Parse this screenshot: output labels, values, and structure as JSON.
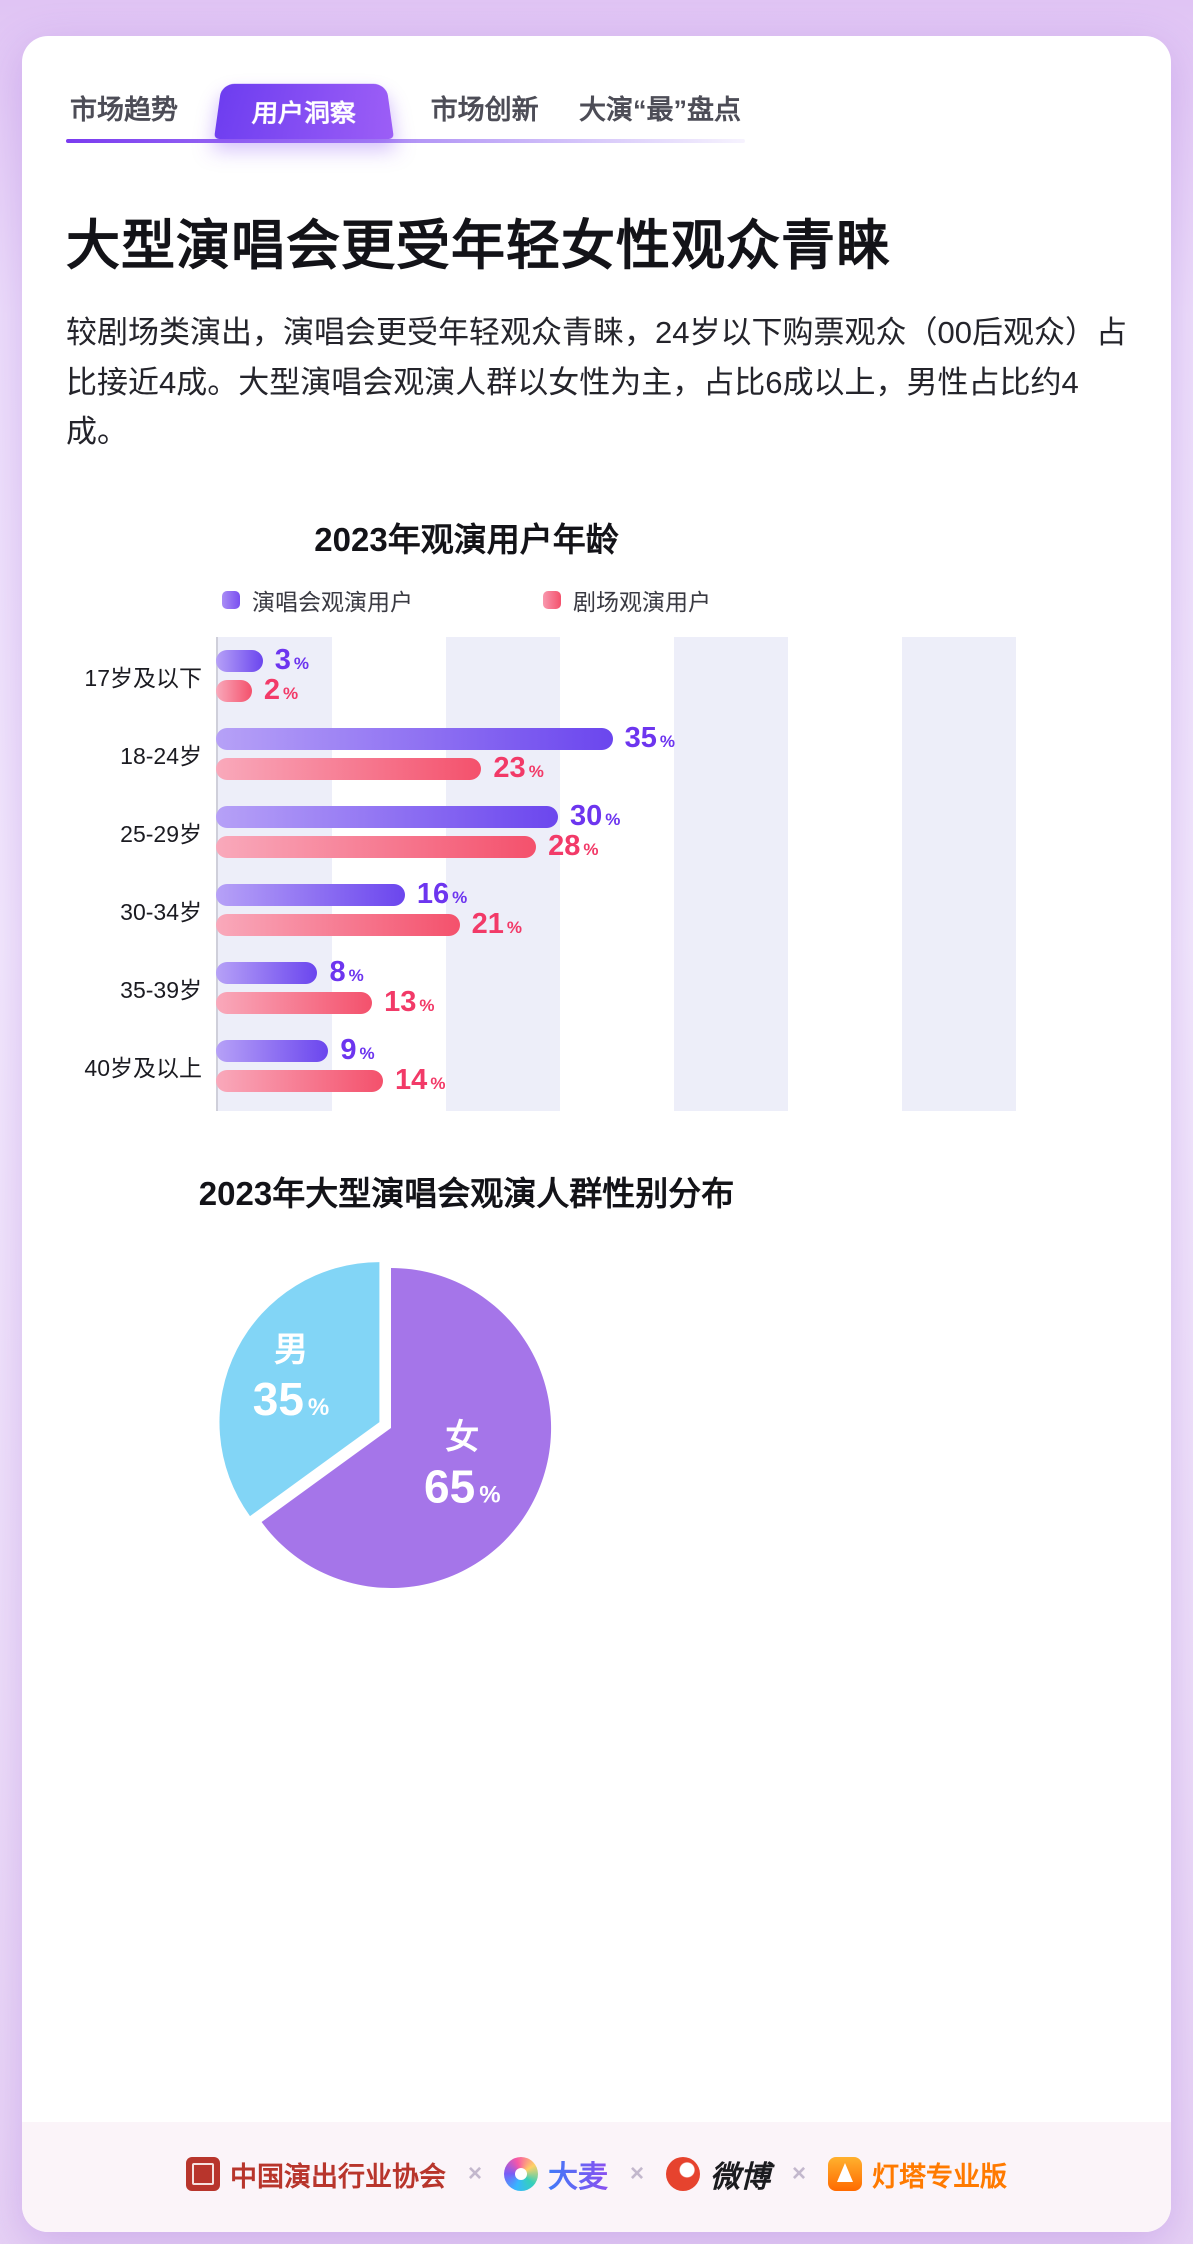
{
  "tabs": [
    {
      "label": "市场趋势",
      "active": false
    },
    {
      "label": "用户洞察",
      "active": true
    },
    {
      "label": "市场创新",
      "active": false
    },
    {
      "label": "大演“最”盘点",
      "active": false
    }
  ],
  "page_title": "大型演唱会更受年轻女性观众青睐",
  "intro": "较剧场类演出，演唱会更受年轻观众青睐，24岁以下购票观众（00后观众）占比接近4成。大型演唱会观演人群以女性为主，占比6成以上，男性占比约4成。",
  "colors": {
    "accent_purple": "#7a3bf0",
    "bar_purple": "#6b46ee",
    "bar_pink": "#f4516c",
    "pie_purple": "#a575e9",
    "pie_blue": "#82d5f6"
  },
  "chart_data": [
    {
      "type": "bar",
      "orientation": "horizontal",
      "title": "2023年观演用户年龄",
      "unit": "%",
      "categories": [
        "17岁及以下",
        "18-24岁",
        "25-29岁",
        "30-34岁",
        "35-39岁",
        "40岁及以上"
      ],
      "series": [
        {
          "name": "演唱会观演用户",
          "color": "#6d35ef",
          "values": [
            3,
            35,
            30,
            16,
            8,
            9
          ]
        },
        {
          "name": "剧场观演用户",
          "color": "#f23a68",
          "values": [
            2,
            23,
            28,
            21,
            13,
            14
          ]
        }
      ],
      "xlim": [
        0,
        40
      ],
      "legend_position": "top",
      "grid": "vertical-bands"
    },
    {
      "type": "pie",
      "title": "2023年大型演唱会观演人群性别分布",
      "unit": "%",
      "slices": [
        {
          "label": "女",
          "value": 65,
          "color": "#a575e9",
          "exploded": false
        },
        {
          "label": "男",
          "value": 35,
          "color": "#82d5f6",
          "exploded": true
        }
      ]
    }
  ],
  "footer": {
    "separator": "×",
    "logos": [
      {
        "label": "中国演出行业协会",
        "icon": "cpaa-seal-icon"
      },
      {
        "label": "大麦",
        "icon": "damai-icon"
      },
      {
        "label": "微博",
        "icon": "weibo-icon"
      },
      {
        "label": "灯塔专业版",
        "icon": "lighthouse-icon"
      }
    ]
  }
}
